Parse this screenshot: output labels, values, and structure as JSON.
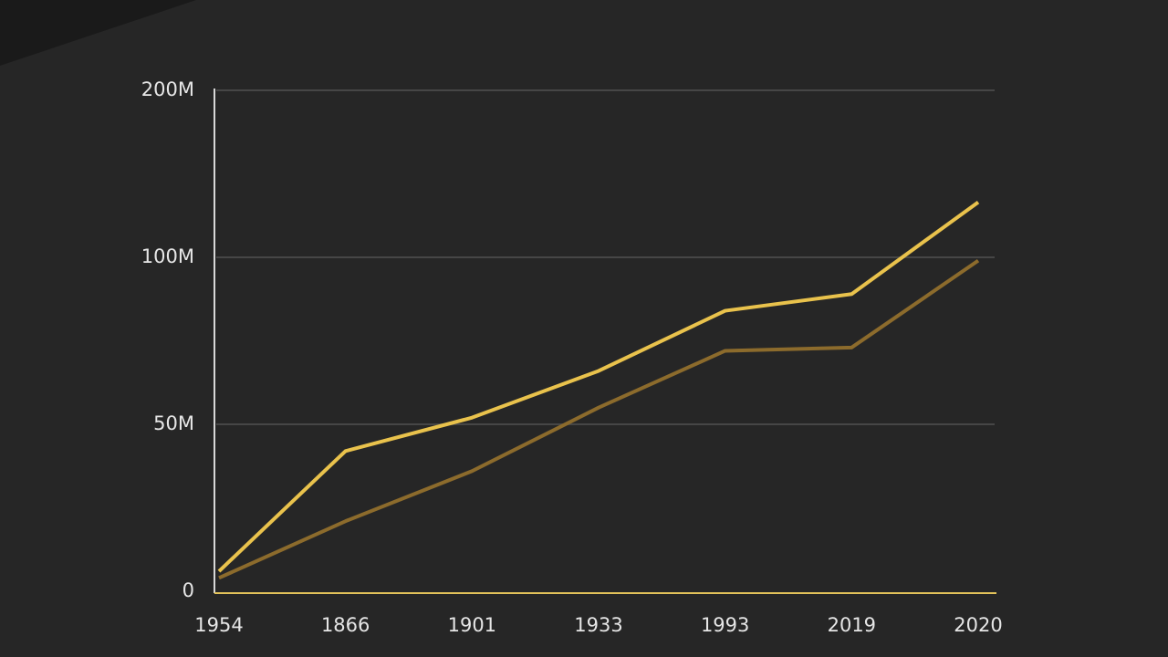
{
  "chart_data": {
    "type": "line",
    "categories": [
      "1954",
      "1866",
      "1901",
      "1933",
      "1993",
      "2019",
      "2020"
    ],
    "series": [
      {
        "color": "#e9c24c",
        "values": [
          6,
          42,
          52,
          66,
          84,
          89,
          133
        ]
      },
      {
        "color": "#8c6b2c",
        "values": [
          4,
          21,
          36,
          55,
          72,
          73,
          99
        ]
      }
    ],
    "ylim": [
      0,
      200
    ],
    "yticks": [
      0,
      {
        "value": 50,
        "label": "50M"
      },
      {
        "value": 100,
        "label": "100M"
      },
      {
        "value": 200,
        "label": "200M"
      }
    ],
    "grid": true
  }
}
